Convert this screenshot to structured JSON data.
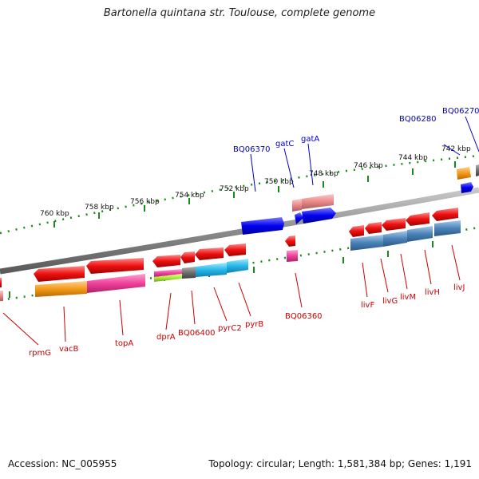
{
  "title": "Bartonella quintana str. Toulouse, complete genome",
  "accession": "Accession: NC_005955",
  "topology": "Topology: circular; Length: 1,581,384 bp; Genes: 1,191",
  "kbp_labels": [
    "760 kbp",
    "758 kbp",
    "756 kbp",
    "754 kbp",
    "752 kbp",
    "750 kbp",
    "748 kbp",
    "746 kbp",
    "744 kbp",
    "742 kbp"
  ],
  "genes_top": [
    "BQ06370",
    "gatC",
    "gatA",
    "BQ06280",
    "BQ06270"
  ],
  "genes_bottom": [
    "rpmG",
    "vacB",
    "topA",
    "dprA",
    "BQ06400",
    "pyrC2",
    "pyrB",
    "BQ06360",
    "livF",
    "livG",
    "livM",
    "livH",
    "livJ"
  ],
  "colors": {
    "blue_label": "#0000cc",
    "red_label": "#cc0000",
    "tick": "#1a8a1a",
    "backbone": "#8c8c8c",
    "red": "#ee1111",
    "blue": "#0000ee",
    "orange": "#f39a1a",
    "magenta": "#f0409a",
    "steelblue": "#4a82b8",
    "cyan": "#25b8e8",
    "lime": "#aee83a",
    "pink": "#e88a8a",
    "gray": "#6f6f6f"
  }
}
